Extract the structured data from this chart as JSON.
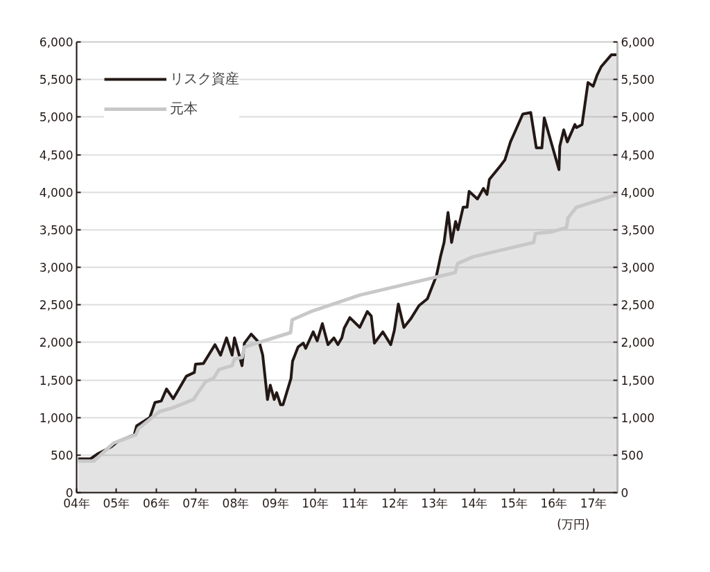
{
  "chart_data": {
    "type": "line",
    "xlim": [
      4,
      17.6
    ],
    "xticks": [
      {
        "value": 4,
        "label": "04年"
      },
      {
        "value": 5,
        "label": "05年"
      },
      {
        "value": 6,
        "label": "06年"
      },
      {
        "value": 7,
        "label": "07年"
      },
      {
        "value": 8,
        "label": "08年"
      },
      {
        "value": 9,
        "label": "09年"
      },
      {
        "value": 10,
        "label": "10年"
      },
      {
        "value": 11,
        "label": "11年"
      },
      {
        "value": 12,
        "label": "12年"
      },
      {
        "value": 13,
        "label": "13年"
      },
      {
        "value": 14,
        "label": "14年"
      },
      {
        "value": 15,
        "label": "15年"
      },
      {
        "value": 16,
        "label": "16年"
      },
      {
        "value": 17,
        "label": "17年"
      }
    ],
    "ylim": [
      0,
      6000
    ],
    "yticks": [
      0,
      500,
      {
        "value": 1000,
        "label": "1,000"
      },
      {
        "value": 1500,
        "label": "1,500"
      },
      {
        "value": 2000,
        "label": "2,000"
      },
      {
        "value": 2500,
        "label": "2,500"
      },
      {
        "value": 3000,
        "label": "3,000"
      },
      {
        "value": 3500,
        "label": "3,500"
      },
      {
        "value": 4000,
        "label": "4,000"
      },
      {
        "value": 4500,
        "label": "4,500"
      },
      {
        "value": 5000,
        "label": "5,000"
      },
      {
        "value": 5500,
        "label": "5,500"
      },
      {
        "value": 6000,
        "label": "6,000"
      }
    ],
    "y2lim": [
      0,
      6000
    ],
    "y2ticks": [
      0,
      500,
      {
        "value": 1000,
        "label": "1,000"
      },
      {
        "value": 1500,
        "label": "1,500"
      },
      {
        "value": 2000,
        "label": "2,000"
      },
      {
        "value": 2500,
        "label": "2,500"
      },
      {
        "value": 3000,
        "label": "3,000"
      },
      {
        "value": 3500,
        "label": "3,500"
      },
      {
        "value": 4000,
        "label": "4,000"
      },
      {
        "value": 4500,
        "label": "4,500"
      },
      {
        "value": 5000,
        "label": "5,000"
      },
      {
        "value": 5500,
        "label": "5,500"
      },
      {
        "value": 6000,
        "label": "6,000"
      }
    ],
    "grid": "y",
    "legend": "top left",
    "annotations": [
      "(万円)"
    ],
    "series": [
      {
        "name": "リスク資産",
        "type": "area",
        "color": "#231815",
        "x": [
          4.04,
          4.35,
          4.54,
          4.87,
          5.03,
          5.45,
          5.51,
          5.84,
          5.97,
          6.13,
          6.26,
          6.43,
          6.76,
          6.96,
          6.99,
          7.19,
          7.48,
          7.62,
          7.77,
          7.91,
          7.97,
          8.16,
          8.22,
          8.39,
          8.6,
          8.68,
          8.8,
          8.87,
          8.97,
          9.03,
          9.13,
          9.19,
          9.39,
          9.43,
          9.57,
          9.7,
          9.76,
          9.95,
          10.05,
          10.18,
          10.32,
          10.47,
          10.57,
          10.67,
          10.73,
          10.87,
          11.12,
          11.31,
          11.41,
          11.49,
          11.7,
          11.9,
          11.99,
          12.09,
          12.23,
          12.41,
          12.61,
          12.82,
          13.05,
          13.15,
          13.24,
          13.34,
          13.43,
          13.53,
          13.59,
          13.72,
          13.82,
          13.87,
          14.08,
          14.23,
          14.32,
          14.38,
          14.67,
          14.77,
          14.91,
          14.97,
          15.22,
          15.42,
          15.56,
          15.7,
          15.76,
          15.93,
          16.13,
          16.15,
          16.25,
          16.34,
          16.53,
          16.57,
          16.71,
          16.86,
          16.99,
          17.09,
          17.19,
          17.45,
          17.58
        ],
        "values": [
          450,
          450,
          520,
          610,
          680,
          770,
          890,
          1000,
          1200,
          1220,
          1380,
          1250,
          1550,
          1600,
          1710,
          1720,
          1970,
          1830,
          2060,
          1830,
          2060,
          1690,
          1990,
          2110,
          1990,
          1830,
          1240,
          1430,
          1240,
          1330,
          1170,
          1170,
          1520,
          1750,
          1940,
          1990,
          1920,
          2140,
          2020,
          2250,
          1970,
          2060,
          1970,
          2060,
          2190,
          2330,
          2200,
          2410,
          2350,
          1990,
          2140,
          1970,
          2160,
          2510,
          2200,
          2320,
          2490,
          2580,
          2890,
          3140,
          3330,
          3730,
          3330,
          3610,
          3500,
          3800,
          3800,
          4010,
          3910,
          4050,
          3970,
          4170,
          4360,
          4430,
          4670,
          4740,
          5040,
          5060,
          4590,
          4590,
          4990,
          4670,
          4300,
          4610,
          4830,
          4670,
          4900,
          4860,
          4900,
          5460,
          5410,
          5560,
          5670,
          5830,
          5830
        ]
      },
      {
        "name": "元本",
        "color": "#c8c8c8",
        "x": [
          4.04,
          4.43,
          4.58,
          4.93,
          5.49,
          5.55,
          5.97,
          6.09,
          6.42,
          6.94,
          7.05,
          7.25,
          7.44,
          7.58,
          7.91,
          7.97,
          8.16,
          8.22,
          9.38,
          9.42,
          9.89,
          11.12,
          13.52,
          13.58,
          13.97,
          15.49,
          15.54,
          15.93,
          16.32,
          16.36,
          16.57,
          17.6
        ],
        "values": [
          420,
          420,
          490,
          660,
          770,
          850,
          1030,
          1080,
          1130,
          1240,
          1330,
          1480,
          1520,
          1640,
          1690,
          1780,
          1800,
          1940,
          2130,
          2300,
          2410,
          2630,
          2930,
          3050,
          3140,
          3330,
          3450,
          3470,
          3530,
          3660,
          3800,
          3970
        ]
      }
    ]
  }
}
